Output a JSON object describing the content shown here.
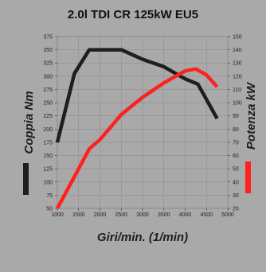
{
  "chart_data": {
    "type": "line",
    "title": "2.0l TDI CR 125kW EU5",
    "xlabel": "Giri/min. (1/min)",
    "ylabel_left": "Coppia Nm",
    "ylabel_right": "Potenza kW",
    "xlim": [
      1000,
      5000
    ],
    "ylim_left": [
      50,
      375
    ],
    "ylim_right": [
      20,
      150
    ],
    "x_ticks": [
      "1000",
      "1500",
      "2000",
      "2500",
      "3000",
      "3500",
      "4000",
      "4500",
      "5000"
    ],
    "y_left_ticks": [
      "50",
      "75",
      "100",
      "125",
      "150",
      "175",
      "200",
      "225",
      "250",
      "275",
      "300",
      "325",
      "350",
      "375"
    ],
    "y_right_ticks": [
      "20",
      "30",
      "40",
      "50",
      "60",
      "70",
      "80",
      "90",
      "100",
      "110",
      "120",
      "130",
      "140",
      "150"
    ],
    "grid": true,
    "series": [
      {
        "name": "Coppia Nm",
        "axis": "left",
        "color": "#1e1e1e",
        "x": [
          1000,
          1400,
          1750,
          2000,
          2500,
          3000,
          3500,
          4000,
          4300,
          4750
        ],
        "y": [
          175,
          305,
          350,
          350,
          350,
          332,
          318,
          295,
          285,
          220
        ]
      },
      {
        "name": "Potenza kW",
        "axis": "right",
        "color": "#ff2020",
        "x": [
          1000,
          1500,
          1750,
          2000,
          2500,
          3000,
          3500,
          4000,
          4250,
          4500,
          4750
        ],
        "y": [
          20,
          50,
          65,
          72,
          91,
          104,
          115,
          124,
          125.5,
          121,
          112
        ]
      }
    ]
  }
}
